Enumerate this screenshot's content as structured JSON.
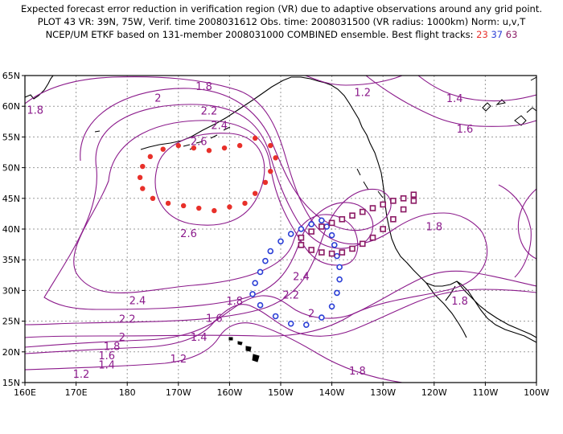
{
  "header": {
    "line1": "Expected forecast error reduction in verification region (VR) due to adaptive observations around any grid point.",
    "line2": "PLOT 43 VR: 39N, 75W, Verif. time 2008031612 Obs. time: 2008031500 (VR radius: 1000km) Norm: u,v,T",
    "line3_prefix": "NCEP/UM ETKF based on 131-member 2008031000 COMBINED ensemble.  Best flight tracks:",
    "track_labels": [
      "23",
      "37",
      "63"
    ]
  },
  "colors": {
    "contour": "#8b1a8b",
    "track23": "#e8302a",
    "track37": "#2b3fd6",
    "track63": "#8b1a64",
    "grid": "#9a9a9a",
    "coast": "#000000"
  },
  "map": {
    "lon_range": [
      "160E",
      "100W"
    ],
    "lat_range": [
      "15N",
      "65N"
    ],
    "x_ticks": [
      "160E",
      "170E",
      "180",
      "170W",
      "160W",
      "150W",
      "140W",
      "130W",
      "120W",
      "110W",
      "100W"
    ],
    "y_ticks": [
      "65N",
      "60N",
      "55N",
      "50N",
      "45N",
      "40N",
      "35N",
      "30N",
      "25N",
      "20N",
      "15N"
    ]
  },
  "contour_labels": [
    {
      "text": "1.8",
      "lon": -165,
      "lat": 63.2
    },
    {
      "text": "1.2",
      "lon": -134,
      "lat": 62.2
    },
    {
      "text": "1.4",
      "lon": -116,
      "lat": 61.2
    },
    {
      "text": "1.8",
      "lon": 162,
      "lat": 59.3
    },
    {
      "text": "2",
      "lon": -174,
      "lat": 61.3
    },
    {
      "text": "2.2",
      "lon": -164,
      "lat": 59.2
    },
    {
      "text": "2.4",
      "lon": -162,
      "lat": 56.8
    },
    {
      "text": "1.6",
      "lon": -114,
      "lat": 56.2
    },
    {
      "text": "2.6",
      "lon": -166,
      "lat": 54.2
    },
    {
      "text": "2.6",
      "lon": -168,
      "lat": 39.2
    },
    {
      "text": "1.8",
      "lon": -120,
      "lat": 40.3
    },
    {
      "text": "2.4",
      "lon": -146,
      "lat": 32.2
    },
    {
      "text": "2.2",
      "lon": -148,
      "lat": 29.2
    },
    {
      "text": "1.8",
      "lon": -115,
      "lat": 28.2
    },
    {
      "text": "2.4",
      "lon": -178,
      "lat": 28.3
    },
    {
      "text": "1.8",
      "lon": -159,
      "lat": 28.2
    },
    {
      "text": "2",
      "lon": -144,
      "lat": 26.2
    },
    {
      "text": "1.6",
      "lon": -163,
      "lat": 25.4
    },
    {
      "text": "2.2",
      "lon": -180,
      "lat": 25.3
    },
    {
      "text": "1.4",
      "lon": -166,
      "lat": 22.3
    },
    {
      "text": "2",
      "lon": -181,
      "lat": 22.3
    },
    {
      "text": "1.8",
      "lon": -183,
      "lat": 20.8
    },
    {
      "text": "1.6",
      "lon": -184,
      "lat": 19.3
    },
    {
      "text": "1.2",
      "lon": -170,
      "lat": 18.8
    },
    {
      "text": "1.4",
      "lon": -184,
      "lat": 17.8
    },
    {
      "text": "1.8",
      "lon": -135,
      "lat": 16.8
    },
    {
      "text": "1.2",
      "lon": -189,
      "lat": 16.3
    }
  ],
  "flight_tracks": [
    {
      "id": "23",
      "marker": "dot",
      "points": [
        [
          -155,
          54.8
        ],
        [
          -152,
          53.6
        ],
        [
          -151,
          51.6
        ],
        [
          -152,
          49.4
        ],
        [
          -153,
          47.6
        ],
        [
          -155,
          45.8
        ],
        [
          -157,
          44.2
        ],
        [
          -160,
          43.6
        ],
        [
          -163,
          43.0
        ],
        [
          -166,
          43.4
        ],
        [
          -169,
          43.8
        ],
        [
          -172,
          44.2
        ],
        [
          -175,
          45.0
        ],
        [
          -177,
          46.6
        ],
        [
          -177.5,
          48.4
        ],
        [
          -177,
          50.2
        ],
        [
          -175.5,
          51.8
        ],
        [
          -173,
          53.0
        ],
        [
          -170,
          53.6
        ],
        [
          -167,
          53.2
        ],
        [
          -164,
          52.8
        ],
        [
          -161,
          53.2
        ],
        [
          -158,
          53.6
        ]
      ]
    },
    {
      "id": "37",
      "marker": "circle",
      "points": [
        [
          -142,
          41.4
        ],
        [
          -144,
          40.8
        ],
        [
          -146,
          40.0
        ],
        [
          -148,
          39.2
        ],
        [
          -150,
          38.0
        ],
        [
          -152,
          36.4
        ],
        [
          -153,
          34.8
        ],
        [
          -154,
          33.0
        ],
        [
          -155,
          31.2
        ],
        [
          -155.5,
          29.4
        ],
        [
          -154,
          27.6
        ],
        [
          -151,
          25.8
        ],
        [
          -148,
          24.6
        ],
        [
          -145,
          24.4
        ],
        [
          -142,
          25.6
        ],
        [
          -140,
          27.4
        ],
        [
          -139,
          29.6
        ],
        [
          -138.5,
          31.8
        ],
        [
          -138.5,
          33.8
        ],
        [
          -139,
          35.6
        ],
        [
          -139.5,
          37.4
        ],
        [
          -140,
          39.0
        ],
        [
          -141,
          40.4
        ]
      ]
    },
    {
      "id": "63",
      "marker": "square",
      "points": [
        [
          -124,
          45.6
        ],
        [
          -126,
          45.0
        ],
        [
          -128,
          44.6
        ],
        [
          -130,
          44.0
        ],
        [
          -132,
          43.4
        ],
        [
          -134,
          42.8
        ],
        [
          -136,
          42.2
        ],
        [
          -138,
          41.6
        ],
        [
          -140,
          41.0
        ],
        [
          -142,
          40.4
        ],
        [
          -144,
          39.6
        ],
        [
          -146,
          38.6
        ],
        [
          -146,
          37.4
        ],
        [
          -144,
          36.6
        ],
        [
          -142,
          36.2
        ],
        [
          -140,
          36.0
        ],
        [
          -138,
          36.2
        ],
        [
          -136,
          36.8
        ],
        [
          -134,
          37.6
        ],
        [
          -132,
          38.6
        ],
        [
          -130,
          40.0
        ],
        [
          -128,
          41.6
        ],
        [
          -126,
          43.2
        ],
        [
          -124,
          44.6
        ]
      ]
    }
  ]
}
